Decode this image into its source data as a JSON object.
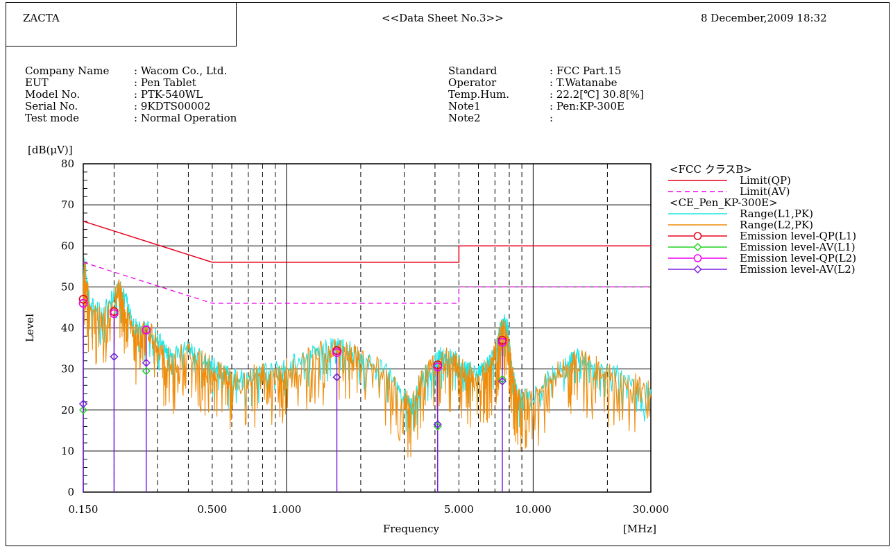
{
  "header": {
    "company": "ZACTA",
    "title": "<<Data Sheet No.3>>",
    "datetime": "8 December,2009 18:32"
  },
  "info_left": [
    {
      "label": "Company Name",
      "value": ": Wacom Co., Ltd."
    },
    {
      "label": "EUT",
      "value": ": Pen Tablet"
    },
    {
      "label": "Model No.",
      "value": ": PTK-540WL"
    },
    {
      "label": "Serial No.",
      "value": ": 9KDTS00002"
    },
    {
      "label": "Test mode",
      "value": ": Normal Operation"
    }
  ],
  "info_right": [
    {
      "label": "Standard",
      "value": ": FCC Part.15"
    },
    {
      "label": "Operator",
      "value": ": T.Watanabe"
    },
    {
      "label": "Temp.Hum.",
      "value": ": 22.2[℃]  30.8[%]"
    },
    {
      "label": "Note1",
      "value": ": Pen:KP-300E"
    },
    {
      "label": "Note2",
      "value": ":"
    }
  ],
  "chart_data": {
    "type": "line",
    "title": "",
    "xlabel": "Frequency",
    "xunit": "[MHz]",
    "ylabel": "Level",
    "yunit": "[dB(μV)]",
    "xscale": "log",
    "xlim": [
      0.15,
      30
    ],
    "ylim": [
      0,
      80
    ],
    "grid": true,
    "legend_position": "right",
    "x_tick_labels": [
      {
        "value": 0.15,
        "label": "0.150"
      },
      {
        "value": 0.5,
        "label": "0.500"
      },
      {
        "value": 1,
        "label": "1.000"
      },
      {
        "value": 5,
        "label": "5.000"
      },
      {
        "value": 10,
        "label": "10.000"
      },
      {
        "value": 30,
        "label": "30.000"
      }
    ],
    "y_tick_labels": [
      "0",
      "10",
      "20",
      "30",
      "40",
      "50",
      "60",
      "70",
      "80"
    ],
    "legend_groups": [
      {
        "heading": "<FCC クラスB>",
        "entries": [
          {
            "name": "Limit(QP)",
            "color": "#e8001c",
            "style": "solid",
            "marker": "none"
          },
          {
            "name": "Limit(AV)",
            "color": "#ee00ee",
            "style": "dashed",
            "marker": "none"
          }
        ]
      },
      {
        "heading": "<CE_Pen_KP-300E>",
        "entries": [
          {
            "name": "Range(L1,PK)",
            "color": "#1ee6e6",
            "style": "solid",
            "marker": "none"
          },
          {
            "name": "Range(L2,PK)",
            "color": "#f08c0a",
            "style": "solid",
            "marker": "none"
          },
          {
            "name": "Emission level-QP(L1)",
            "color": "#e8001c",
            "style": "solid",
            "marker": "circle"
          },
          {
            "name": "Emission level-AV(L1)",
            "color": "#21d421",
            "style": "solid",
            "marker": "diamond"
          },
          {
            "name": "Emission level-QP(L2)",
            "color": "#ee00ee",
            "style": "solid",
            "marker": "circle"
          },
          {
            "name": "Emission level-AV(L2)",
            "color": "#7a1fe0",
            "style": "solid",
            "marker": "diamond"
          }
        ]
      }
    ],
    "limits": {
      "qp": {
        "name": "Limit(QP)",
        "x": [
          0.15,
          0.5,
          5,
          5,
          30
        ],
        "y": [
          66,
          56,
          56,
          60,
          60
        ]
      },
      "av": {
        "name": "Limit(AV)",
        "x": [
          0.15,
          0.5,
          5,
          5,
          30
        ],
        "y": [
          56,
          46,
          46,
          50,
          50
        ]
      }
    },
    "range_envelope": {
      "x": [
        0.15,
        0.152,
        0.16,
        0.18,
        0.2,
        0.21,
        0.22,
        0.24,
        0.26,
        0.27,
        0.3,
        0.32,
        0.35,
        0.4,
        0.45,
        0.5,
        0.55,
        0.6,
        0.7,
        0.8,
        0.9,
        1.0,
        1.2,
        1.4,
        1.6,
        1.8,
        2.0,
        2.5,
        3.0,
        3.2,
        3.5,
        4.0,
        4.3,
        4.7,
        5.0,
        5.5,
        6.0,
        6.5,
        7.0,
        7.3,
        7.6,
        7.9,
        8.2,
        8.6,
        9.0,
        10,
        12,
        14,
        15,
        17,
        20,
        25,
        30
      ],
      "L1": [
        52,
        56,
        46,
        44,
        48,
        50,
        48,
        41,
        40,
        40,
        38,
        35,
        34,
        35,
        33,
        31,
        30,
        28,
        29,
        30,
        30,
        31,
        33,
        35,
        36,
        35,
        33,
        30,
        24,
        21,
        28,
        32,
        34,
        33,
        32,
        30,
        29,
        31,
        34,
        39,
        42,
        40,
        30,
        24,
        23,
        24,
        29,
        32,
        33,
        32,
        30,
        28,
        25
      ],
      "L2": [
        50,
        54,
        44,
        42,
        47,
        49,
        46,
        39,
        38,
        40,
        36,
        33,
        32,
        34,
        32,
        30,
        29,
        27,
        28,
        29,
        29,
        30,
        32,
        34,
        35,
        34,
        32,
        29,
        23,
        20,
        27,
        31,
        33,
        32,
        31,
        29,
        28,
        30,
        33,
        38,
        41,
        38,
        29,
        23,
        22,
        23,
        28,
        31,
        32,
        31,
        29,
        27,
        24
      ]
    },
    "emission_points": {
      "QP_L1": {
        "x": [
          0.15,
          0.2,
          0.27,
          1.6,
          4.1,
          7.5
        ],
        "y": [
          47,
          44,
          39.5,
          34.5,
          31,
          37
        ]
      },
      "QP_L2": {
        "x": [
          0.15,
          0.2,
          0.27,
          1.6,
          4.1,
          7.5
        ],
        "y": [
          46,
          43.5,
          39.5,
          34,
          30.5,
          36.5
        ]
      },
      "AV_L1": {
        "x": [
          0.15,
          0.2,
          0.27,
          1.6,
          4.1,
          7.5
        ],
        "y": [
          20,
          33,
          29.5,
          28,
          16,
          27.5
        ]
      },
      "AV_L2": {
        "x": [
          0.15,
          0.2,
          0.27,
          1.6,
          4.1,
          7.5
        ],
        "y": [
          21.5,
          33,
          31.5,
          28,
          16.5,
          27
        ]
      }
    }
  }
}
